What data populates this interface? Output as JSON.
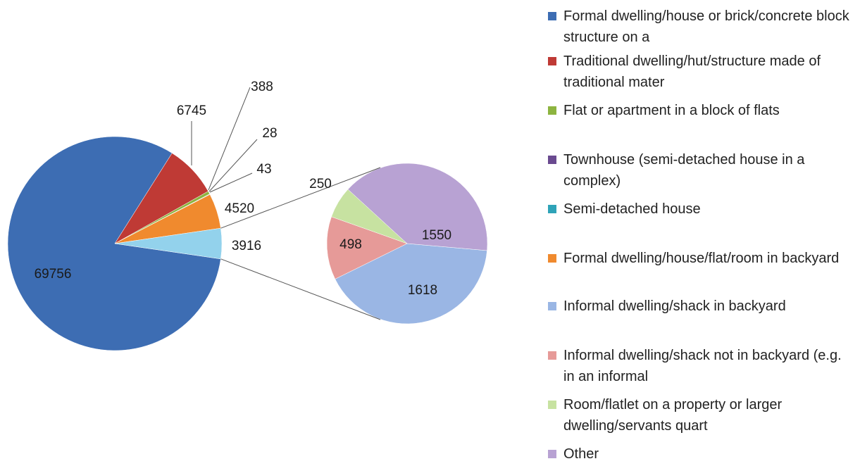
{
  "chart_data": {
    "type": "pie-of-pie",
    "categories": [
      "Formal dwelling/house or brick/concrete block structure on a",
      "Traditional dwelling/hut/structure made of traditional mater",
      "Flat or apartment in a block of flats",
      "Townhouse (semi-detached house in a complex)",
      "Semi-detached house",
      "Formal dwelling/house/flat/room in backyard",
      "Informal dwelling/shack in backyard",
      "Informal dwelling/shack not in backyard (e.g. in an informal",
      "Room/flatlet on a property or larger dwelling/servants quart",
      "Other"
    ],
    "values": [
      69756,
      6745,
      388,
      28,
      43,
      4520,
      1618,
      498,
      250,
      1550
    ],
    "colors": [
      "#3d6db3",
      "#bf3a35",
      "#8db440",
      "#6a4a90",
      "#2fa3b8",
      "#f08a2e",
      "#9ab6e4",
      "#e69a98",
      "#c7e2a1",
      "#b8a2d3"
    ],
    "secondary_count": 4,
    "secondary_total": 3916,
    "secondary_total_color": "#93d2ec"
  }
}
